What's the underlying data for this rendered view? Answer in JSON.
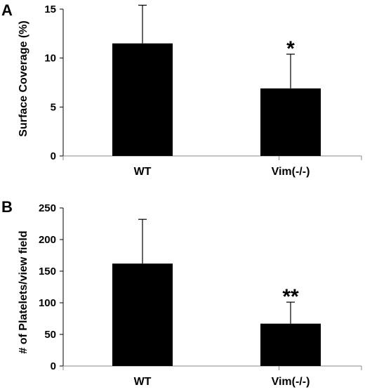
{
  "chart_data": [
    {
      "type": "bar",
      "panel_label": "A",
      "categories": [
        "WT",
        "Vim(-/-)"
      ],
      "values": [
        11.5,
        6.9
      ],
      "error_bars": [
        3.9,
        3.5
      ],
      "annotations": [
        "",
        "*"
      ],
      "ylabel": "Surface Coverage (%)",
      "xlabel": "",
      "ylim": [
        0,
        15
      ],
      "yticks": [
        0,
        5,
        10,
        15
      ],
      "ytick_labels": [
        "0",
        "5",
        "10",
        "15"
      ],
      "bar_color": "#000000",
      "grid": false,
      "legend": "none"
    },
    {
      "type": "bar",
      "panel_label": "B",
      "categories": [
        "WT",
        "Vim(-/-)"
      ],
      "values": [
        162,
        67
      ],
      "error_bars": [
        70,
        34
      ],
      "annotations": [
        "",
        "**"
      ],
      "ylabel": "# of  Platelets/view field",
      "xlabel": "",
      "ylim": [
        0,
        250
      ],
      "yticks": [
        0,
        50,
        100,
        150,
        200,
        250
      ],
      "ytick_labels": [
        "0",
        "50",
        "100",
        "150",
        "200",
        "250"
      ],
      "bar_color": "#000000",
      "grid": false,
      "legend": "none"
    }
  ]
}
